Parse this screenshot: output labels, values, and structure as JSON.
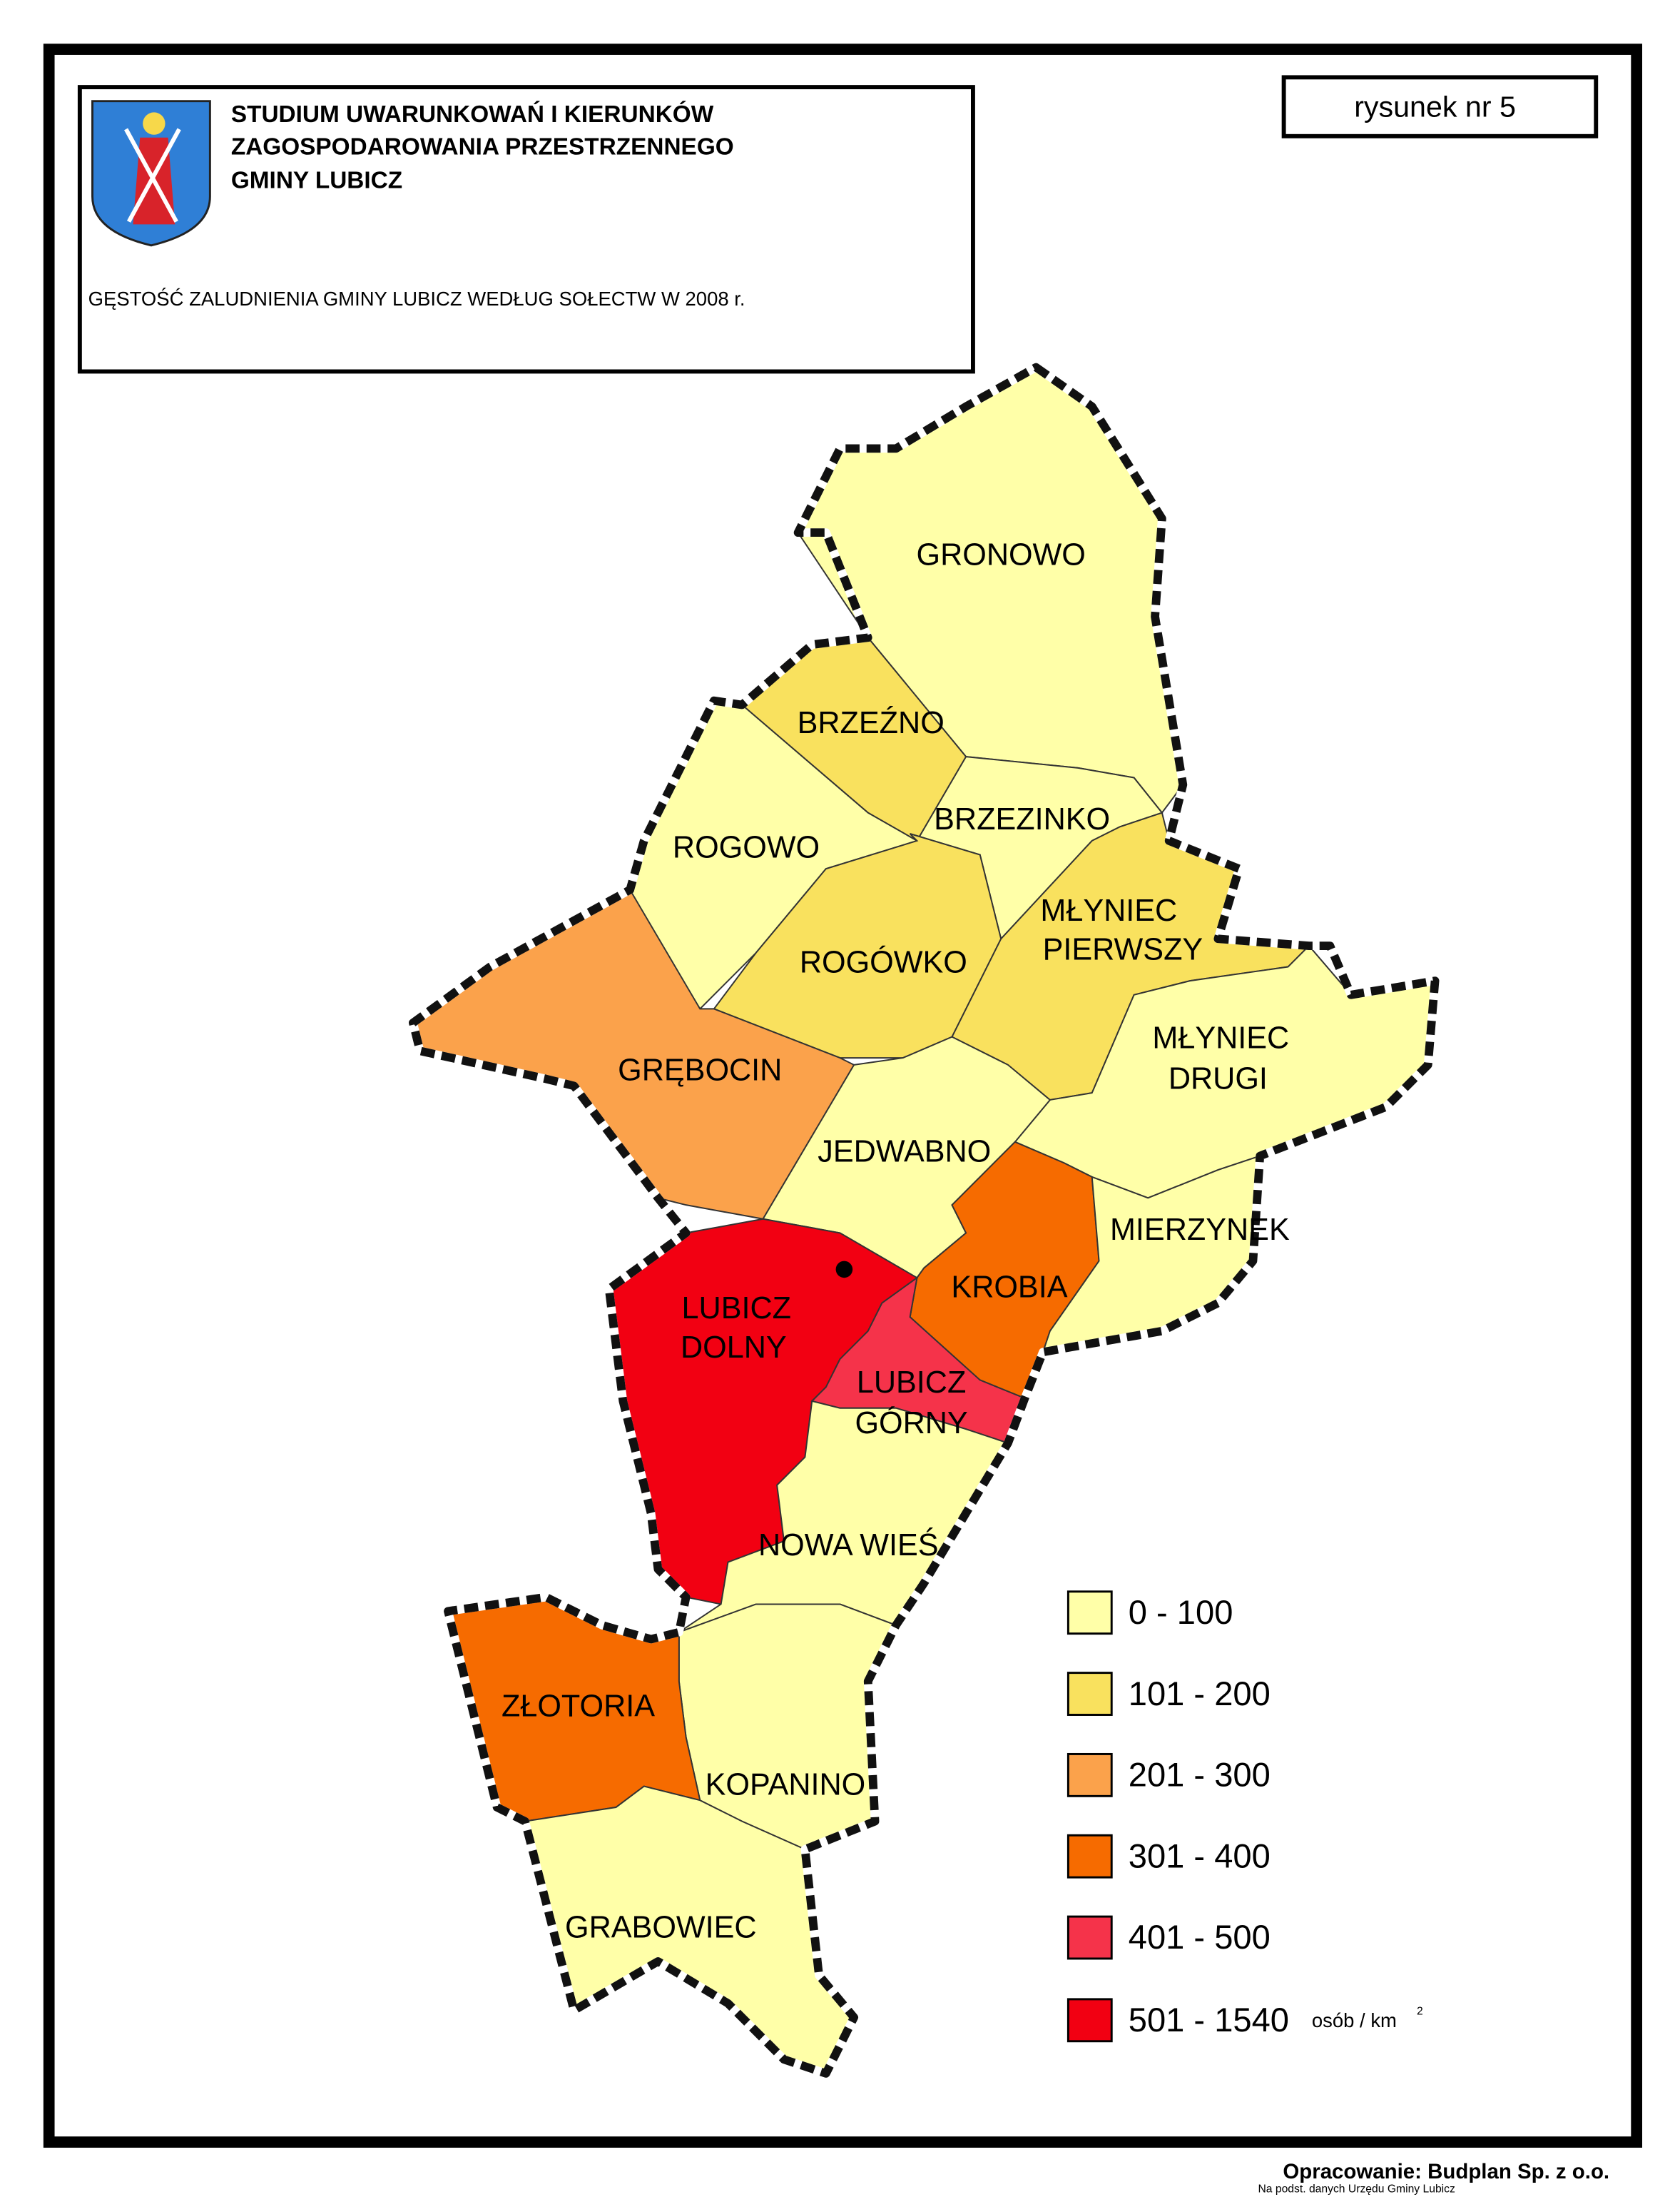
{
  "header": {
    "title_lines": [
      "STUDIUM UWARUNKOWAŃ I KIERUNKÓW",
      "ZAGOSPODAROWANIA PRZESTRZENNEGO",
      "GMINY LUBICZ"
    ],
    "subtitle": "GĘSTOŚĆ ZALUDNIENIA GMINY LUBICZ WEDŁUG SOŁECTW W 2008 r.",
    "figure_label": "rysunek nr 5"
  },
  "legend": {
    "items": [
      {
        "label": "0 - 100",
        "color": "#ffffa8"
      },
      {
        "label": "101 - 200",
        "color": "#f9e15e"
      },
      {
        "label": "201 - 300",
        "color": "#fba24b"
      },
      {
        "label": "301 - 400",
        "color": "#f66b00"
      },
      {
        "label": "401 - 500",
        "color": "#f5334a"
      },
      {
        "label": "501 - 1540",
        "color": "#f20012"
      }
    ],
    "unit": "osób / km",
    "unit_superscript": "2"
  },
  "regions": [
    {
      "lines": [
        "GRONOWO"
      ],
      "color": "#ffffa8"
    },
    {
      "lines": [
        "BRZEŹNO"
      ],
      "color": "#f9e15e"
    },
    {
      "lines": [
        "BRZEZINKO"
      ],
      "color": "#ffffa8"
    },
    {
      "lines": [
        "ROGOWO"
      ],
      "color": "#ffffa8"
    },
    {
      "lines": [
        "ROGÓWKO"
      ],
      "color": "#f9e15e"
    },
    {
      "lines": [
        "MŁYNIEC",
        "PIERWSZY"
      ],
      "color": "#f9e15e"
    },
    {
      "lines": [
        "MŁYNIEC",
        "DRUGI"
      ],
      "color": "#ffffa8"
    },
    {
      "lines": [
        "GRĘBOCIN"
      ],
      "color": "#fba24b"
    },
    {
      "lines": [
        "JEDWABNO"
      ],
      "color": "#ffffa8"
    },
    {
      "lines": [
        "KROBIA"
      ],
      "color": "#f66b00"
    },
    {
      "lines": [
        "MIERZYNEK"
      ],
      "color": "#ffffa8"
    },
    {
      "lines": [
        "LUBICZ",
        "DOLNY"
      ],
      "color": "#f20012"
    },
    {
      "lines": [
        "LUBICZ",
        "GÓRNY"
      ],
      "color": "#f5334a"
    },
    {
      "lines": [
        "NOWA WIEŚ"
      ],
      "color": "#ffffa8"
    },
    {
      "lines": [
        "KOPANINO"
      ],
      "color": "#ffffa8"
    },
    {
      "lines": [
        "ZŁOTORIA"
      ],
      "color": "#f66b00"
    },
    {
      "lines": [
        "GRABOWIEC"
      ],
      "color": "#ffffa8"
    }
  ],
  "footer": {
    "credit": "Opracowanie: Budplan Sp. z o.o.",
    "source": "Na podst. danych Urzędu Gminy Lubicz"
  }
}
